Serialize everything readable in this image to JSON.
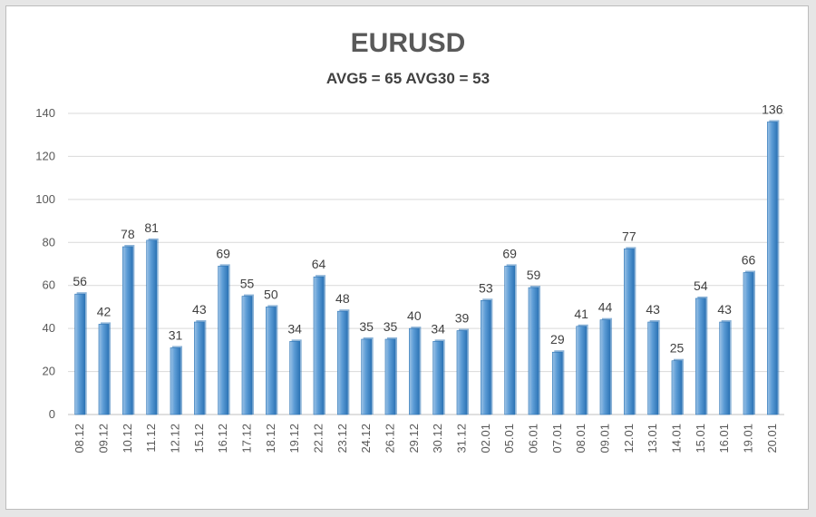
{
  "chart_data": {
    "type": "bar",
    "title": "EURUSD",
    "subtitle": "AVG5 = 65 AVG30 = 53",
    "categories": [
      "08.12",
      "09.12",
      "10.12",
      "11.12",
      "12.12",
      "15.12",
      "16.12",
      "17.12",
      "18.12",
      "19.12",
      "22.12",
      "23.12",
      "24.12",
      "26.12",
      "29.12",
      "30.12",
      "31.12",
      "02.01",
      "05.01",
      "06.01",
      "07.01",
      "08.01",
      "09.01",
      "12.01",
      "13.01",
      "14.01",
      "15.01",
      "16.01",
      "19.01",
      "20.01"
    ],
    "values": [
      56,
      42,
      78,
      81,
      31,
      43,
      69,
      55,
      50,
      34,
      64,
      48,
      35,
      35,
      40,
      34,
      39,
      53,
      69,
      59,
      29,
      41,
      44,
      77,
      43,
      25,
      54,
      43,
      66,
      136
    ],
    "ylim": [
      0,
      140
    ],
    "yticks": [
      0,
      20,
      40,
      60,
      80,
      100,
      120,
      140
    ],
    "grid": true,
    "legend": "none",
    "xlabel": "",
    "ylabel": "",
    "colors": {
      "bar_light": "#9dc3e6",
      "bar_mid": "#5b9bd5",
      "bar_dark": "#2e75b6",
      "grid": "#d9d9d9",
      "axis": "#bfbfbf"
    }
  }
}
